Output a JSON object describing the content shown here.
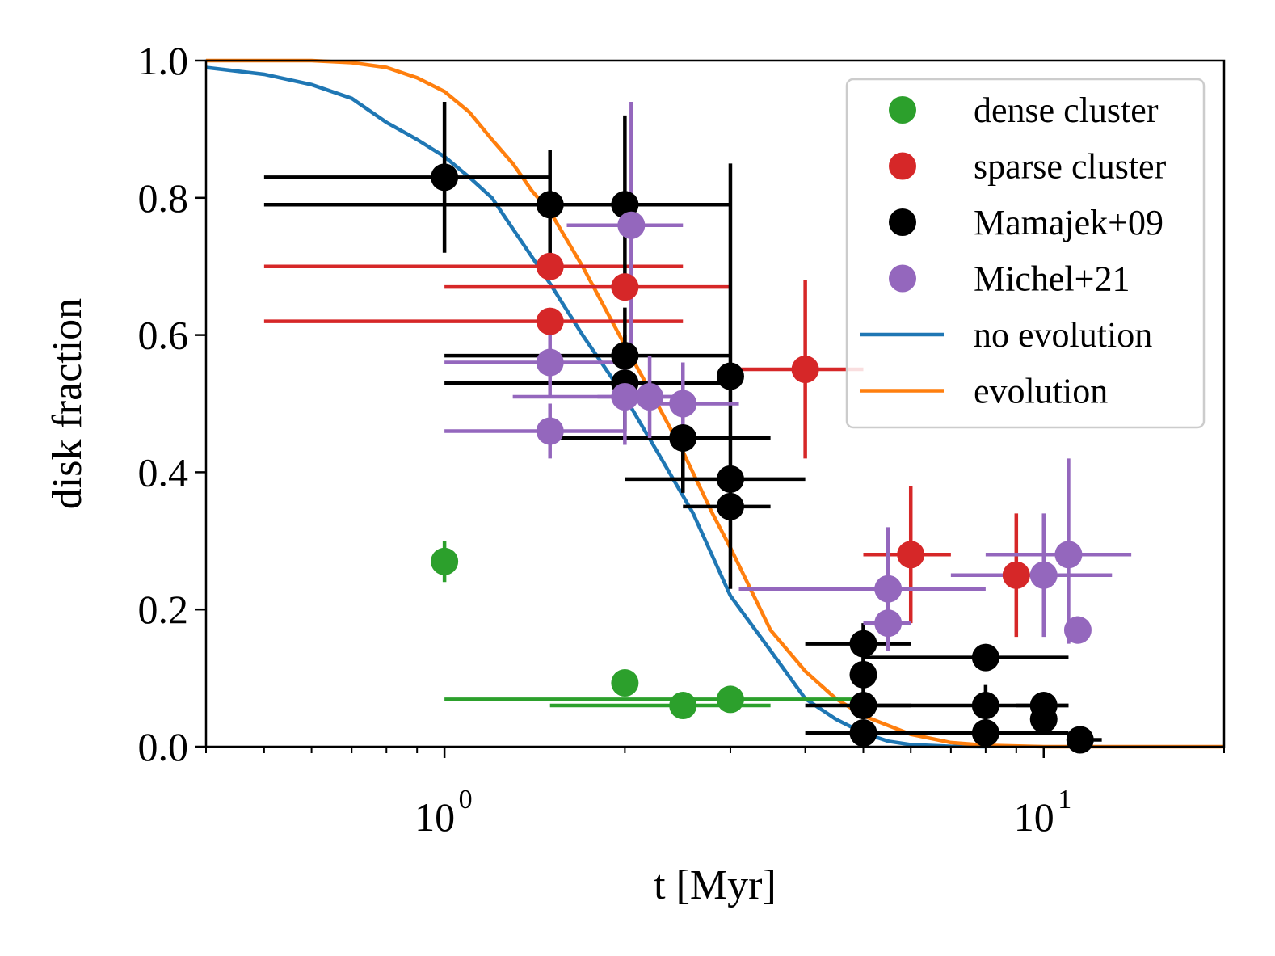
{
  "chart_data": {
    "type": "scatter",
    "title": "",
    "xlabel": "t [Myr]",
    "ylabel": "disk fraction",
    "xscale": "log",
    "xlim": [
      0.4,
      20
    ],
    "ylim": [
      0,
      1
    ],
    "x_major_ticks": [
      {
        "value": 1,
        "label": "10",
        "exp": "0"
      },
      {
        "value": 10,
        "label": "10",
        "exp": "1"
      }
    ],
    "y_ticks": [
      {
        "value": 0.0,
        "label": "0.0"
      },
      {
        "value": 0.2,
        "label": "0.2"
      },
      {
        "value": 0.4,
        "label": "0.4"
      },
      {
        "value": 0.6,
        "label": "0.6"
      },
      {
        "value": 0.8,
        "label": "0.8"
      },
      {
        "value": 1.0,
        "label": "1.0"
      }
    ],
    "legend_position": "top-right",
    "grid": false,
    "series": [
      {
        "name": "dense cluster",
        "kind": "points",
        "color": "#2ca02c",
        "points": [
          {
            "x": 1.0,
            "y": 0.27,
            "xerr": [
              1.0,
              1.0
            ],
            "yerr": [
              0.24,
              0.3
            ]
          },
          {
            "x": 2.0,
            "y": 0.093,
            "xerr": [
              2.0,
              2.0
            ],
            "yerr": [
              0.093,
              0.093
            ]
          },
          {
            "x": 2.5,
            "y": 0.06,
            "xerr": [
              1.5,
              3.5
            ],
            "yerr": [
              0.06,
              0.06
            ]
          },
          {
            "x": 3.0,
            "y": 0.069,
            "xerr": [
              1.0,
              5.0
            ],
            "yerr": [
              0.069,
              0.069
            ]
          }
        ]
      },
      {
        "name": "sparse cluster",
        "kind": "points",
        "color": "#d62728",
        "points": [
          {
            "x": 1.5,
            "y": 0.7,
            "xerr": [
              0.5,
              2.5
            ],
            "yerr": [
              0.7,
              0.7
            ]
          },
          {
            "x": 1.5,
            "y": 0.62,
            "xerr": [
              0.5,
              2.5
            ],
            "yerr": [
              0.62,
              0.62
            ]
          },
          {
            "x": 2.0,
            "y": 0.67,
            "xerr": [
              1.0,
              3.0
            ],
            "yerr": [
              0.67,
              0.67
            ]
          },
          {
            "x": 4.0,
            "y": 0.55,
            "xerr": [
              3.0,
              5.0
            ],
            "yerr": [
              0.42,
              0.68
            ]
          },
          {
            "x": 6.0,
            "y": 0.28,
            "xerr": [
              5.0,
              7.0
            ],
            "yerr": [
              0.18,
              0.38
            ]
          },
          {
            "x": 9.0,
            "y": 0.25,
            "xerr": [
              8.0,
              10.0
            ],
            "yerr": [
              0.16,
              0.34
            ]
          }
        ]
      },
      {
        "name": "Mamajek+09",
        "kind": "points",
        "color": "#000000",
        "points": [
          {
            "x": 1.0,
            "y": 0.83,
            "xerr": [
              0.5,
              1.5
            ],
            "yerr": [
              0.72,
              0.94
            ]
          },
          {
            "x": 1.5,
            "y": 0.79,
            "xerr": [
              0.5,
              2.5
            ],
            "yerr": [
              0.71,
              0.87
            ]
          },
          {
            "x": 2.0,
            "y": 0.79,
            "xerr": [
              1.0,
              3.0
            ],
            "yerr": [
              0.66,
              0.92
            ]
          },
          {
            "x": 2.0,
            "y": 0.57,
            "xerr": [
              1.0,
              3.0
            ],
            "yerr": [
              0.5,
              0.64
            ]
          },
          {
            "x": 2.0,
            "y": 0.53,
            "xerr": [
              1.0,
              3.0
            ],
            "yerr": [
              0.46,
              0.6
            ]
          },
          {
            "x": 2.5,
            "y": 0.45,
            "xerr": [
              1.5,
              3.5
            ],
            "yerr": [
              0.37,
              0.53
            ]
          },
          {
            "x": 3.0,
            "y": 0.54,
            "xerr": [
              3.0,
              3.0
            ],
            "yerr": [
              0.23,
              0.85
            ]
          },
          {
            "x": 3.0,
            "y": 0.39,
            "xerr": [
              2.0,
              4.0
            ],
            "yerr": [
              0.39,
              0.39
            ]
          },
          {
            "x": 3.0,
            "y": 0.35,
            "xerr": [
              2.5,
              3.5
            ],
            "yerr": [
              0.35,
              0.35
            ]
          },
          {
            "x": 5.0,
            "y": 0.15,
            "xerr": [
              4.0,
              6.0
            ],
            "yerr": [
              0.12,
              0.18
            ]
          },
          {
            "x": 5.0,
            "y": 0.105,
            "xerr": [
              5.0,
              5.0
            ],
            "yerr": [
              0.08,
              0.13
            ]
          },
          {
            "x": 5.0,
            "y": 0.06,
            "xerr": [
              4.0,
              6.0
            ],
            "yerr": [
              0.04,
              0.08
            ]
          },
          {
            "x": 5.0,
            "y": 0.02,
            "xerr": [
              4.0,
              6.0
            ],
            "yerr": [
              0.02,
              0.02
            ]
          },
          {
            "x": 8.0,
            "y": 0.13,
            "xerr": [
              5.0,
              11.0
            ],
            "yerr": [
              0.13,
              0.13
            ]
          },
          {
            "x": 8.0,
            "y": 0.06,
            "xerr": [
              5.0,
              11.0
            ],
            "yerr": [
              0.03,
              0.09
            ]
          },
          {
            "x": 8.0,
            "y": 0.02,
            "xerr": [
              5.0,
              11.0
            ],
            "yerr": [
              0.0,
              0.04
            ]
          },
          {
            "x": 10.0,
            "y": 0.06,
            "xerr": [
              9.0,
              11.0
            ],
            "yerr": [
              0.06,
              0.06
            ]
          },
          {
            "x": 10.0,
            "y": 0.04,
            "xerr": [
              10.0,
              10.0
            ],
            "yerr": [
              0.04,
              0.04
            ]
          },
          {
            "x": 11.5,
            "y": 0.01,
            "xerr": [
              11.0,
              12.5
            ],
            "yerr": [
              0.0,
              0.02
            ]
          }
        ]
      },
      {
        "name": "Michel+21",
        "kind": "points",
        "color": "#9467bd",
        "points": [
          {
            "x": 2.05,
            "y": 0.76,
            "xerr": [
              1.6,
              2.5
            ],
            "yerr": [
              0.58,
              0.94
            ]
          },
          {
            "x": 1.5,
            "y": 0.56,
            "xerr": [
              1.0,
              2.0
            ],
            "yerr": [
              0.51,
              0.61
            ]
          },
          {
            "x": 1.5,
            "y": 0.46,
            "xerr": [
              1.0,
              2.0
            ],
            "yerr": [
              0.42,
              0.5
            ]
          },
          {
            "x": 2.0,
            "y": 0.51,
            "xerr": [
              1.3,
              2.6
            ],
            "yerr": [
              0.44,
              0.58
            ]
          },
          {
            "x": 2.2,
            "y": 0.51,
            "xerr": [
              1.8,
              2.6
            ],
            "yerr": [
              0.45,
              0.57
            ]
          },
          {
            "x": 2.5,
            "y": 0.5,
            "xerr": [
              2.2,
              3.1
            ],
            "yerr": [
              0.44,
              0.56
            ]
          },
          {
            "x": 5.5,
            "y": 0.23,
            "xerr": [
              3.1,
              8.0
            ],
            "yerr": [
              0.16,
              0.32
            ]
          },
          {
            "x": 5.5,
            "y": 0.18,
            "xerr": [
              5.0,
              6.0
            ],
            "yerr": [
              0.14,
              0.22
            ]
          },
          {
            "x": 10.0,
            "y": 0.25,
            "xerr": [
              7.0,
              13.0
            ],
            "yerr": [
              0.16,
              0.34
            ]
          },
          {
            "x": 11.0,
            "y": 0.28,
            "xerr": [
              8.0,
              14.0
            ],
            "yerr": [
              0.15,
              0.42
            ]
          },
          {
            "x": 11.4,
            "y": 0.17,
            "xerr": [
              11.0,
              12.0
            ],
            "yerr": [
              0.15,
              0.19
            ]
          }
        ]
      },
      {
        "name": "no evolution",
        "kind": "line",
        "color": "#1f77b4",
        "points": [
          {
            "x": 0.4,
            "y": 0.99
          },
          {
            "x": 0.5,
            "y": 0.98
          },
          {
            "x": 0.6,
            "y": 0.965
          },
          {
            "x": 0.7,
            "y": 0.945
          },
          {
            "x": 0.8,
            "y": 0.91
          },
          {
            "x": 0.9,
            "y": 0.885
          },
          {
            "x": 1.0,
            "y": 0.86
          },
          {
            "x": 1.1,
            "y": 0.83
          },
          {
            "x": 1.2,
            "y": 0.8
          },
          {
            "x": 1.3,
            "y": 0.755
          },
          {
            "x": 1.5,
            "y": 0.675
          },
          {
            "x": 1.7,
            "y": 0.6
          },
          {
            "x": 2.0,
            "y": 0.51
          },
          {
            "x": 2.3,
            "y": 0.42
          },
          {
            "x": 2.6,
            "y": 0.34
          },
          {
            "x": 3.0,
            "y": 0.22
          },
          {
            "x": 3.5,
            "y": 0.14
          },
          {
            "x": 4.0,
            "y": 0.07
          },
          {
            "x": 4.5,
            "y": 0.04
          },
          {
            "x": 5.0,
            "y": 0.02
          },
          {
            "x": 5.5,
            "y": 0.008
          },
          {
            "x": 6.0,
            "y": 0.003
          },
          {
            "x": 7.0,
            "y": 0.0005
          },
          {
            "x": 8.0,
            "y": 0.0
          }
        ]
      },
      {
        "name": "evolution",
        "kind": "line",
        "color": "#ff7f0e",
        "points": [
          {
            "x": 0.4,
            "y": 1.0
          },
          {
            "x": 0.6,
            "y": 1.0
          },
          {
            "x": 0.7,
            "y": 0.997
          },
          {
            "x": 0.8,
            "y": 0.99
          },
          {
            "x": 0.9,
            "y": 0.975
          },
          {
            "x": 1.0,
            "y": 0.955
          },
          {
            "x": 1.1,
            "y": 0.925
          },
          {
            "x": 1.2,
            "y": 0.885
          },
          {
            "x": 1.3,
            "y": 0.85
          },
          {
            "x": 1.4,
            "y": 0.81
          },
          {
            "x": 1.5,
            "y": 0.78
          },
          {
            "x": 1.7,
            "y": 0.7
          },
          {
            "x": 2.0,
            "y": 0.585
          },
          {
            "x": 2.2,
            "y": 0.52
          },
          {
            "x": 2.5,
            "y": 0.43
          },
          {
            "x": 2.8,
            "y": 0.34
          },
          {
            "x": 3.0,
            "y": 0.29
          },
          {
            "x": 3.5,
            "y": 0.17
          },
          {
            "x": 4.0,
            "y": 0.11
          },
          {
            "x": 4.5,
            "y": 0.07
          },
          {
            "x": 5.0,
            "y": 0.045
          },
          {
            "x": 6.0,
            "y": 0.018
          },
          {
            "x": 7.0,
            "y": 0.006
          },
          {
            "x": 8.0,
            "y": 0.002
          },
          {
            "x": 10.0,
            "y": 0.0
          },
          {
            "x": 20.0,
            "y": 0.0
          }
        ]
      }
    ]
  }
}
